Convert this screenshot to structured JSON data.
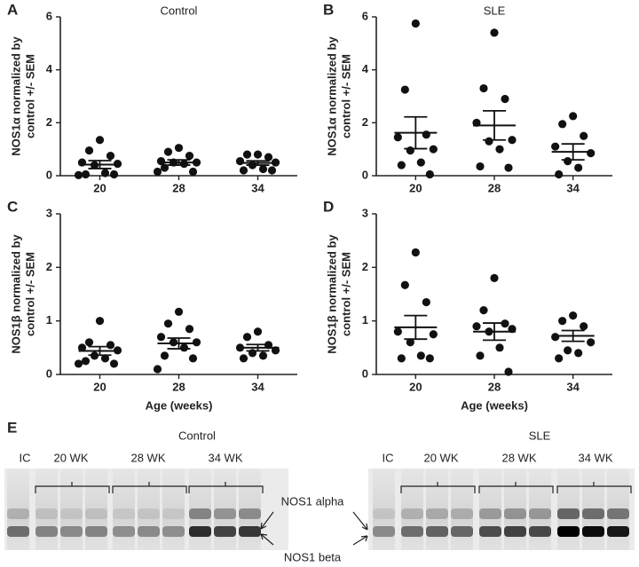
{
  "chart_data": [
    {
      "type": "strip",
      "letter": "A",
      "title": "Control",
      "ylabel": [
        "NOS1α normalized by",
        "control +/- SEM"
      ],
      "categories": [
        "20",
        "28",
        "34"
      ],
      "ylim": [
        0,
        6
      ],
      "yticks": [
        0,
        2,
        4,
        6
      ],
      "color": "#111111",
      "values": [
        [
          1.35,
          0.95,
          0.75,
          0.5,
          0.45,
          0.4,
          0.1,
          0.05,
          0.05,
          0.02
        ],
        [
          1.05,
          0.9,
          0.75,
          0.55,
          0.5,
          0.5,
          0.45,
          0.3,
          0.15,
          0.15
        ],
        [
          0.8,
          0.8,
          0.7,
          0.55,
          0.5,
          0.4,
          0.25,
          0.2,
          0.2
        ]
      ],
      "mean": [
        0.42,
        0.5,
        0.48
      ],
      "sem": [
        0.15,
        0.1,
        0.08
      ]
    },
    {
      "type": "strip",
      "letter": "B",
      "title": "SLE",
      "ylabel": [
        "NOS1α normalized by",
        "control +/- SEM"
      ],
      "categories": [
        "20",
        "28",
        "34"
      ],
      "ylim": [
        0,
        6
      ],
      "yticks": [
        0,
        2,
        4,
        6
      ],
      "color": "#111111",
      "values": [
        [
          5.75,
          3.25,
          1.55,
          1.45,
          1.0,
          0.95,
          0.5,
          0.4,
          0.05
        ],
        [
          5.4,
          3.3,
          2.9,
          2.0,
          1.35,
          1.3,
          1.0,
          0.35,
          0.3
        ],
        [
          2.25,
          1.95,
          1.5,
          1.1,
          0.85,
          0.55,
          0.3,
          0.05
        ]
      ],
      "mean": [
        1.62,
        1.9,
        0.9
      ],
      "sem": [
        0.6,
        0.55,
        0.3
      ]
    },
    {
      "type": "strip",
      "letter": "C",
      "ylabel": [
        "NOS1β normalized by",
        "control +/- SEM"
      ],
      "xlabel": "Age (weeks)",
      "categories": [
        "20",
        "28",
        "34"
      ],
      "ylim": [
        0,
        3
      ],
      "yticks": [
        0,
        1,
        2,
        3
      ],
      "color": "#111111",
      "values": [
        [
          1.0,
          0.6,
          0.55,
          0.5,
          0.45,
          0.35,
          0.3,
          0.25,
          0.2,
          0.2
        ],
        [
          1.17,
          0.95,
          0.85,
          0.7,
          0.6,
          0.6,
          0.5,
          0.35,
          0.3,
          0.1
        ],
        [
          0.8,
          0.7,
          0.55,
          0.5,
          0.45,
          0.4,
          0.35,
          0.3
        ]
      ],
      "mean": [
        0.44,
        0.58,
        0.5
      ],
      "sem": [
        0.08,
        0.1,
        0.06
      ]
    },
    {
      "type": "strip",
      "letter": "D",
      "ylabel": [
        "NOS1β normalized by",
        "control +/- SEM"
      ],
      "xlabel": "Age (weeks)",
      "categories": [
        "20",
        "28",
        "34"
      ],
      "ylim": [
        0,
        3
      ],
      "yticks": [
        0,
        1,
        2,
        3
      ],
      "color": "#111111",
      "values": [
        [
          2.28,
          1.67,
          1.35,
          0.8,
          0.75,
          0.6,
          0.35,
          0.3,
          0.3
        ],
        [
          1.8,
          1.2,
          0.95,
          0.9,
          0.85,
          0.8,
          0.5,
          0.35,
          0.05
        ],
        [
          1.1,
          1.0,
          0.9,
          0.7,
          0.6,
          0.45,
          0.4,
          0.3
        ]
      ],
      "mean": [
        0.88,
        0.8,
        0.72
      ],
      "sem": [
        0.22,
        0.16,
        0.1
      ]
    }
  ],
  "blot": {
    "letter": "E",
    "groups": [
      {
        "title": "Control",
        "lanes": [
          "IC",
          "20 WK",
          "28 WK",
          "34 WK"
        ]
      },
      {
        "title": "SLE",
        "lanes": [
          "IC",
          "20 WK",
          "28 WK",
          "34 WK"
        ]
      }
    ],
    "band_labels": [
      "NOS1 alpha",
      "NOS1 beta"
    ]
  }
}
